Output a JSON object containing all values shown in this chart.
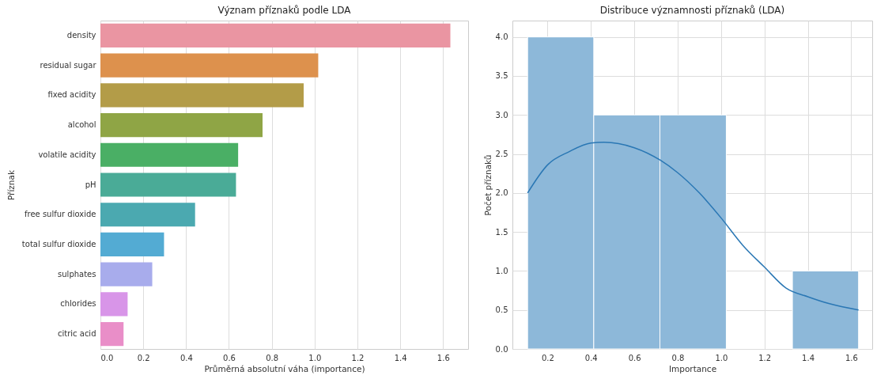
{
  "chart_data": [
    {
      "type": "bar",
      "orientation": "horizontal",
      "title": "Význam příznaků podle LDA",
      "xlabel": "Průměrná absolutní váha (importance)",
      "ylabel": "Příznak",
      "categories": [
        "density",
        "residual sugar",
        "fixed acidity",
        "alcohol",
        "volatile acidity",
        "pH",
        "free sulfur dioxide",
        "total sulfur dioxide",
        "sulphates",
        "chlorides",
        "citric acid"
      ],
      "values": [
        1.634,
        1.017,
        0.949,
        0.757,
        0.643,
        0.633,
        0.442,
        0.297,
        0.242,
        0.127,
        0.108
      ],
      "colors": [
        "#ea95a2",
        "#dd914d",
        "#b39c48",
        "#8fa545",
        "#4aaf65",
        "#4aab97",
        "#4ba9b0",
        "#53abd3",
        "#a8acec",
        "#d895e8",
        "#e98ec8"
      ],
      "xlim": [
        0,
        1.717
      ],
      "xticks": [
        {
          "value": 0,
          "label": "0.0"
        },
        {
          "value": 0.2,
          "label": "0.2"
        },
        {
          "value": 0.4,
          "label": "0.4"
        },
        {
          "value": 0.6,
          "label": "0.6"
        },
        {
          "value": 0.8,
          "label": "0.8"
        },
        {
          "value": 1,
          "label": "1.0"
        },
        {
          "value": 1.2,
          "label": "1.2"
        },
        {
          "value": 1.4,
          "label": "1.4"
        },
        {
          "value": 1.6,
          "label": "1.6"
        }
      ],
      "grid": "x",
      "legend": false
    },
    {
      "type": "histogram",
      "title": "Distribuce významnosti příznaků (LDA)",
      "xlabel": "Importance",
      "ylabel": "Počet příznaků",
      "bins": [
        0.108,
        0.413,
        0.718,
        1.024,
        1.329,
        1.634
      ],
      "values": [
        4,
        3,
        3,
        0,
        1
      ],
      "color": "#8db8d9",
      "series": [
        {
          "type": "line",
          "color": "#2a77b4",
          "x": [
            0.108,
            0.2,
            0.3,
            0.4,
            0.46,
            0.6,
            0.72,
            0.8,
            0.9,
            1.0,
            1.1,
            1.2,
            1.3,
            1.4,
            1.5,
            1.634
          ],
          "values": [
            2.0,
            2.36,
            2.53,
            2.64,
            2.65,
            2.58,
            2.42,
            2.26,
            2.0,
            1.68,
            1.33,
            1.05,
            0.78,
            0.67,
            0.58,
            0.5
          ]
        }
      ],
      "xlim": [
        0.038,
        1.697
      ],
      "xticks": [
        {
          "value": 0.2,
          "label": "0.2"
        },
        {
          "value": 0.4,
          "label": "0.4"
        },
        {
          "value": 0.6,
          "label": "0.6"
        },
        {
          "value": 0.8,
          "label": "0.8"
        },
        {
          "value": 1,
          "label": "1.0"
        },
        {
          "value": 1.2,
          "label": "1.2"
        },
        {
          "value": 1.4,
          "label": "1.4"
        },
        {
          "value": 1.6,
          "label": "1.6"
        }
      ],
      "ylim": [
        0,
        4.21
      ],
      "yticks": [
        {
          "value": 0,
          "label": "0.0"
        },
        {
          "value": 0.5,
          "label": "0.5"
        },
        {
          "value": 1,
          "label": "1.0"
        },
        {
          "value": 1.5,
          "label": "1.5"
        },
        {
          "value": 2,
          "label": "2.0"
        },
        {
          "value": 2.5,
          "label": "2.5"
        },
        {
          "value": 3,
          "label": "3.0"
        },
        {
          "value": 3.5,
          "label": "3.5"
        },
        {
          "value": 4,
          "label": "4.0"
        }
      ],
      "grid": true
    }
  ]
}
